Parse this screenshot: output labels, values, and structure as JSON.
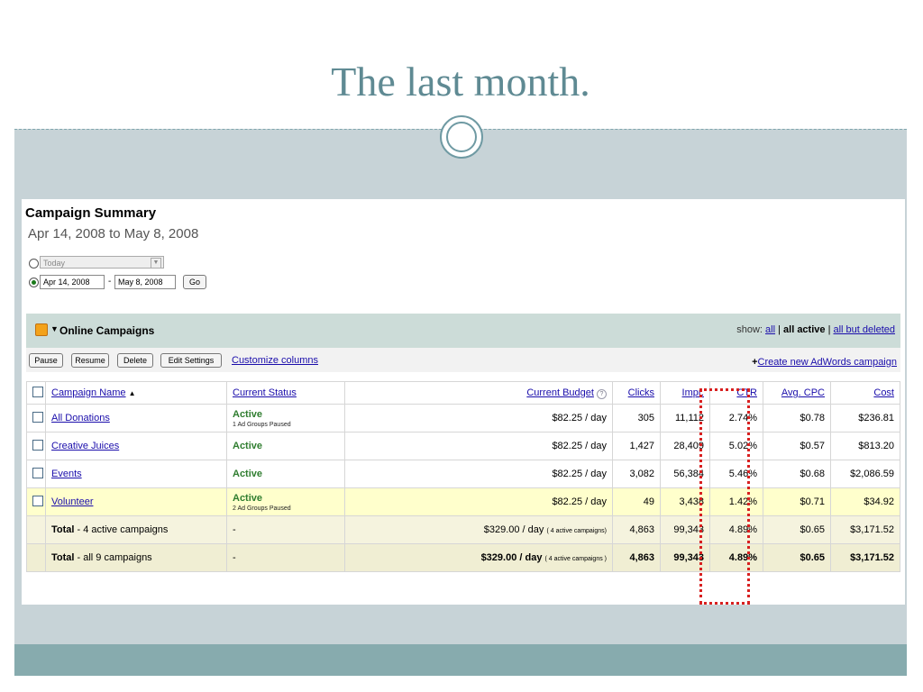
{
  "slide": {
    "title": "The last month."
  },
  "summary": {
    "heading": "Campaign Summary",
    "date_range": "Apr 14, 2008 to May 8, 2008",
    "today_option": "Today",
    "from_date": "Apr 14, 2008",
    "to_date": "May 8, 2008",
    "date_separator": "-",
    "go_label": "Go"
  },
  "campaigns_bar": {
    "title": "Online Campaigns",
    "show_label": "show:",
    "show_all": "all",
    "show_active": "all active",
    "show_but_deleted": "all but deleted",
    "separator": "|"
  },
  "toolbar": {
    "pause": "Pause",
    "resume": "Resume",
    "delete": "Delete",
    "edit_settings": "Edit Settings",
    "customize": "Customize columns",
    "create_plus": "+",
    "create": "Create new AdWords campaign"
  },
  "table": {
    "headers": {
      "name": "Campaign Name",
      "sort_indicator": "▲",
      "status": "Current Status",
      "budget": "Current Budget",
      "clicks": "Clicks",
      "impr": "Impr.",
      "ctr": "CTR",
      "cpc": "Avg. CPC",
      "cost": "Cost"
    },
    "rows": [
      {
        "name": "All Donations",
        "status": "Active",
        "status_sub": "1 Ad Groups Paused",
        "budget": "$82.25 / day",
        "clicks": "305",
        "impr": "11,112",
        "ctr": "2.74%",
        "cpc": "$0.78",
        "cost": "$236.81"
      },
      {
        "name": "Creative Juices",
        "status": "Active",
        "status_sub": "",
        "budget": "$82.25 / day",
        "clicks": "1,427",
        "impr": "28,409",
        "ctr": "5.02%",
        "cpc": "$0.57",
        "cost": "$813.20"
      },
      {
        "name": "Events",
        "status": "Active",
        "status_sub": "",
        "budget": "$82.25 / day",
        "clicks": "3,082",
        "impr": "56,384",
        "ctr": "5.46%",
        "cpc": "$0.68",
        "cost": "$2,086.59"
      },
      {
        "name": "Volunteer",
        "status": "Active",
        "status_sub": "2 Ad Groups Paused",
        "budget": "$82.25 / day",
        "clicks": "49",
        "impr": "3,438",
        "ctr": "1.42%",
        "cpc": "$0.71",
        "cost": "$34.92"
      }
    ],
    "totals": [
      {
        "label_bold": "Total",
        "label_rest": "- 4 active campaigns",
        "status": "-",
        "budget": "$329.00 / day",
        "budget_note": "( 4 active campaigns)",
        "clicks": "4,863",
        "impr": "99,343",
        "ctr": "4.89%",
        "cpc": "$0.65",
        "cost": "$3,171.52"
      },
      {
        "label_bold": "Total",
        "label_rest": "- all 9 campaigns",
        "status": "-",
        "budget": "$329.00 / day",
        "budget_note": "( 4 active campaigns )",
        "clicks": "4,863",
        "impr": "99,343",
        "ctr": "4.89%",
        "cpc": "$0.65",
        "cost": "$3,171.52"
      }
    ]
  },
  "colors": {
    "slide_bg": "#c7d3d7",
    "title_color": "#5f8a93",
    "active_green": "#2f7d2f",
    "highlight_red": "#d82020",
    "yellow_row": "#ffffcc"
  }
}
